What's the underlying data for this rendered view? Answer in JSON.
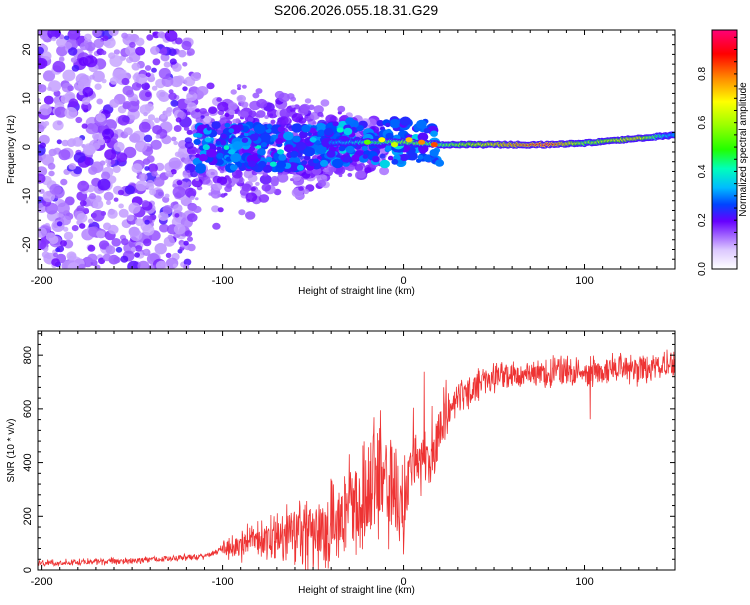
{
  "title": "S206.2026.055.18.31.G29",
  "chart_data": [
    {
      "type": "heatmap",
      "xlabel": "Height of straight line (km)",
      "ylabel": "Frequency (Hz)",
      "xlim": [
        -202,
        150
      ],
      "ylim": [
        -25,
        24
      ],
      "xticks": [
        -200,
        -100,
        0,
        100
      ],
      "yticks": [
        -20,
        -10,
        0,
        10,
        20
      ],
      "colorbar": {
        "label": "Normalized spectral amplitude",
        "range": [
          0,
          0.98
        ],
        "ticks": [
          0.0,
          0.2,
          0.4,
          0.6,
          0.8
        ]
      },
      "ridge": [
        {
          "x": -120,
          "y": 0.0,
          "amp": 0.25
        },
        {
          "x": -80,
          "y": -0.5,
          "amp": 0.3
        },
        {
          "x": -40,
          "y": 1.0,
          "amp": 0.3
        },
        {
          "x": -20,
          "y": 1.0,
          "amp": 0.45
        },
        {
          "x": 0,
          "y": 1.0,
          "amp": 0.6
        },
        {
          "x": 20,
          "y": 0.5,
          "amp": 0.55
        },
        {
          "x": 50,
          "y": 0.5,
          "amp": 0.75
        },
        {
          "x": 80,
          "y": 0.5,
          "amp": 0.95
        },
        {
          "x": 100,
          "y": 0.8,
          "amp": 0.6
        },
        {
          "x": 130,
          "y": 1.8,
          "amp": 0.75
        },
        {
          "x": 150,
          "y": 2.5,
          "amp": 0.3
        }
      ]
    },
    {
      "type": "line",
      "xlabel": "Height of straight line (km)",
      "ylabel": "SNR (10 * v/v)",
      "xlim": [
        -202,
        150
      ],
      "ylim": [
        0,
        890
      ],
      "xticks": [
        -200,
        -100,
        0,
        100
      ],
      "yticks": [
        0,
        200,
        400,
        600,
        800
      ],
      "color": "#ee3333",
      "trend": [
        {
          "x": -202,
          "y": 25
        },
        {
          "x": -150,
          "y": 35
        },
        {
          "x": -110,
          "y": 50
        },
        {
          "x": -100,
          "y": 80
        },
        {
          "x": -70,
          "y": 120
        },
        {
          "x": -40,
          "y": 170
        },
        {
          "x": -25,
          "y": 230
        },
        {
          "x": -15,
          "y": 350
        },
        {
          "x": -8,
          "y": 300
        },
        {
          "x": 0,
          "y": 250
        },
        {
          "x": 5,
          "y": 400
        },
        {
          "x": 10,
          "y": 380
        },
        {
          "x": 15,
          "y": 450
        },
        {
          "x": 20,
          "y": 540
        },
        {
          "x": 30,
          "y": 640
        },
        {
          "x": 50,
          "y": 720
        },
        {
          "x": 70,
          "y": 730
        },
        {
          "x": 100,
          "y": 740
        },
        {
          "x": 150,
          "y": 760
        }
      ]
    }
  ]
}
